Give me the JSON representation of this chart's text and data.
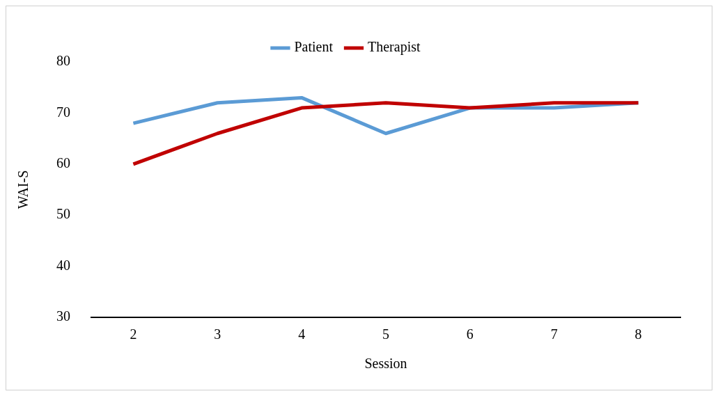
{
  "chart_data": {
    "type": "line",
    "xlabel": "Session",
    "ylabel": "WAI-S",
    "categories": [
      "2",
      "3",
      "4",
      "5",
      "6",
      "7",
      "8"
    ],
    "series": [
      {
        "name": "Patient",
        "color": "#5b9bd5",
        "values": [
          68,
          72,
          73,
          66,
          71,
          71,
          72
        ]
      },
      {
        "name": "Therapist",
        "color": "#c00000",
        "values": [
          60,
          66,
          71,
          72,
          71,
          72,
          72
        ]
      }
    ],
    "ylim": [
      30,
      80
    ],
    "yticks": [
      30,
      40,
      50,
      60,
      70,
      80
    ],
    "grid": false,
    "legend": "top",
    "marker": "none",
    "line_style": "solid"
  }
}
